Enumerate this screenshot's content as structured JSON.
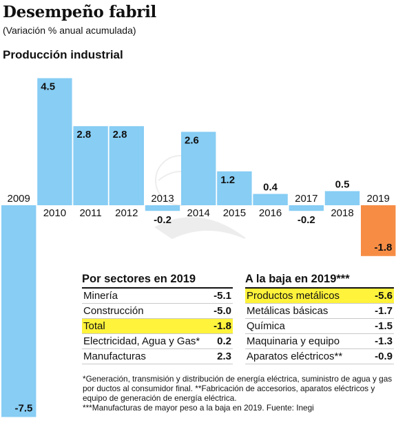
{
  "title": "Desempeño fabril",
  "subtitle": "(Variación % anual acumulada)",
  "section_title": "Producción industrial",
  "colors": {
    "positive": "#87cdf4",
    "negative": "#87cdf4",
    "highlight_year": "#f78d45",
    "row_highlight": "#fff33b"
  },
  "chart_data": {
    "type": "bar",
    "categories": [
      "2009",
      "2010",
      "2011",
      "2012",
      "2013",
      "2014",
      "2015",
      "2016",
      "2017",
      "2018",
      "2019"
    ],
    "values": [
      -7.5,
      4.5,
      2.8,
      2.8,
      -0.2,
      2.6,
      1.2,
      0.4,
      -0.2,
      0.5,
      -1.8
    ],
    "value_labels": [
      "-7.5",
      "4.5",
      "2.8",
      "2.8",
      "-0.2",
      "2.6",
      "1.2",
      "0.4",
      "-0.2",
      "0.5",
      "-1.8"
    ],
    "highlight_category": "2019",
    "title": "Producción industrial",
    "xlabel": "",
    "ylabel": "",
    "ylim": [
      -7.5,
      4.5
    ],
    "grid": false,
    "legend": "none"
  },
  "sectors_table": {
    "title": "Por sectores en 2019",
    "rows": [
      {
        "label": "Minería",
        "value": "-5.1",
        "highlight": false
      },
      {
        "label": "Construcción",
        "value": "-5.0",
        "highlight": false
      },
      {
        "label": "Total",
        "value": "-1.8",
        "highlight": true
      },
      {
        "label": "Electricidad, Agua y Gas*",
        "value": "0.2",
        "highlight": false
      },
      {
        "label": "Manufacturas",
        "value": "2.3",
        "highlight": false
      }
    ]
  },
  "decline_table": {
    "title": "A la baja en 2019***",
    "rows": [
      {
        "label": "Productos metálicos",
        "value": "-5.6",
        "highlight": true
      },
      {
        "label": "Metálicas básicas",
        "value": "-1.7",
        "highlight": false
      },
      {
        "label": "Química",
        "value": "-1.5",
        "highlight": false
      },
      {
        "label": "Maquinaria y equipo",
        "value": "-1.3",
        "highlight": false
      },
      {
        "label": "Aparatos eléctricos**",
        "value": "-0.9",
        "highlight": false
      }
    ]
  },
  "notes": [
    "*Generación, transmisión y distribución de energía eléctrica, suministro de agua y gas por ductos al consumidor final. **Fabricación de accesorios, aparatos eléctricos y equipo de generación de energía eléctrica.",
    "***Manufacturas de mayor peso a la baja en 2019. Fuente: Inegi"
  ]
}
